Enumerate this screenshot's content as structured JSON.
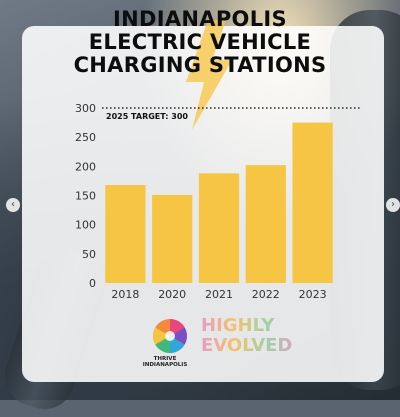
{
  "title_lines": [
    "INDIANAPOLIS",
    "ELECTRIC VEHICLE",
    "CHARGING STATIONS"
  ],
  "colors": {
    "bar": "#f7c544",
    "target_line": "#222222",
    "panel": "#ffffff"
  },
  "chart_data": {
    "type": "bar",
    "title": "INDIANAPOLIS ELECTRIC VEHICLE CHARGING STATIONS",
    "categories": [
      "2018",
      "2020",
      "2021",
      "2022",
      "2023"
    ],
    "values": [
      168,
      151,
      188,
      202,
      275
    ],
    "ylim": [
      0,
      300
    ],
    "yticks": [
      0,
      50,
      100,
      150,
      200,
      250,
      300
    ],
    "grid": false,
    "reference_line": {
      "value": 300,
      "label": "2025 TARGET: 300",
      "style": "dotted"
    }
  },
  "logos": {
    "thrive": {
      "label": "THRIVE INDIANAPOLIS"
    },
    "highly_evolved": {
      "lines": [
        "HIGHLY",
        "EVOLVED"
      ]
    }
  }
}
